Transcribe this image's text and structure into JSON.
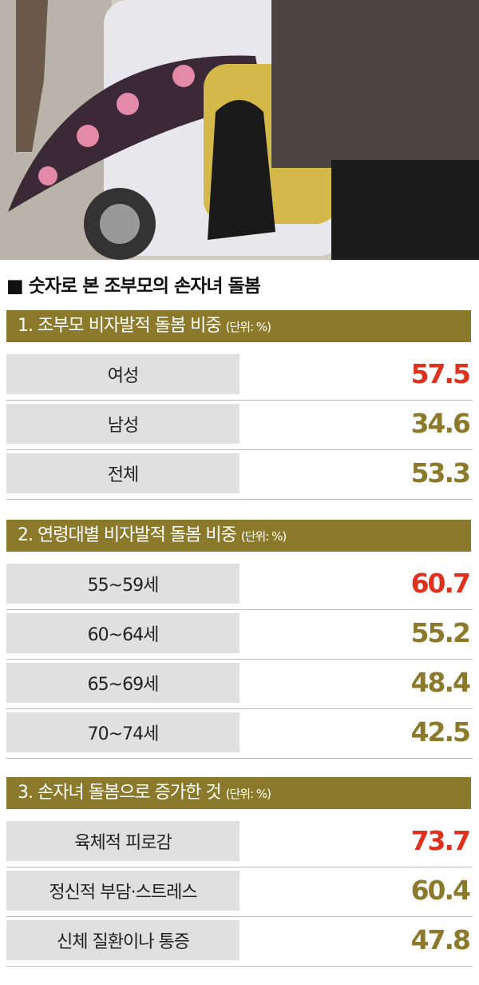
{
  "title": "■ 숫자로 본 조부모의 손자녀 돌봄",
  "sections": [
    {
      "heading": "1. 조부모 비자발적 돌봄 비중",
      "unit": "(단위: %)",
      "top": 388,
      "rows": [
        {
          "label": "여성",
          "value": 57.5,
          "color": "#e0301e"
        },
        {
          "label": "남성",
          "value": 34.6,
          "color": "#8c7a2c"
        },
        {
          "label": "전체",
          "value": 53.3,
          "color": "#8c7a2c"
        }
      ]
    },
    {
      "heading": "2. 연령대별 비자발적 돌봄 비중",
      "unit": "(단위: %)",
      "top": 650,
      "rows": [
        {
          "label": "55~59세",
          "value": 60.7,
          "color": "#e0301e"
        },
        {
          "label": "60~64세",
          "value": 55.2,
          "color": "#8c7a2c"
        },
        {
          "label": "65~69세",
          "value": 48.4,
          "color": "#8c7a2c"
        },
        {
          "label": "70~74세",
          "value": 42.5,
          "color": "#8c7a2c"
        }
      ]
    },
    {
      "heading": "3. 손자녀 돌봄으로 증가한 것",
      "unit": "(단위: %)",
      "top": 972,
      "rows": [
        {
          "label": "육체적 피로감",
          "value": 73.7,
          "color": "#e0301e"
        },
        {
          "label": "정신적 부담·스트레스",
          "value": 60.4,
          "color": "#8c7a2c"
        },
        {
          "label": "신체 질환이나 통증",
          "value": 47.8,
          "color": "#8c7a2c"
        }
      ]
    }
  ]
}
